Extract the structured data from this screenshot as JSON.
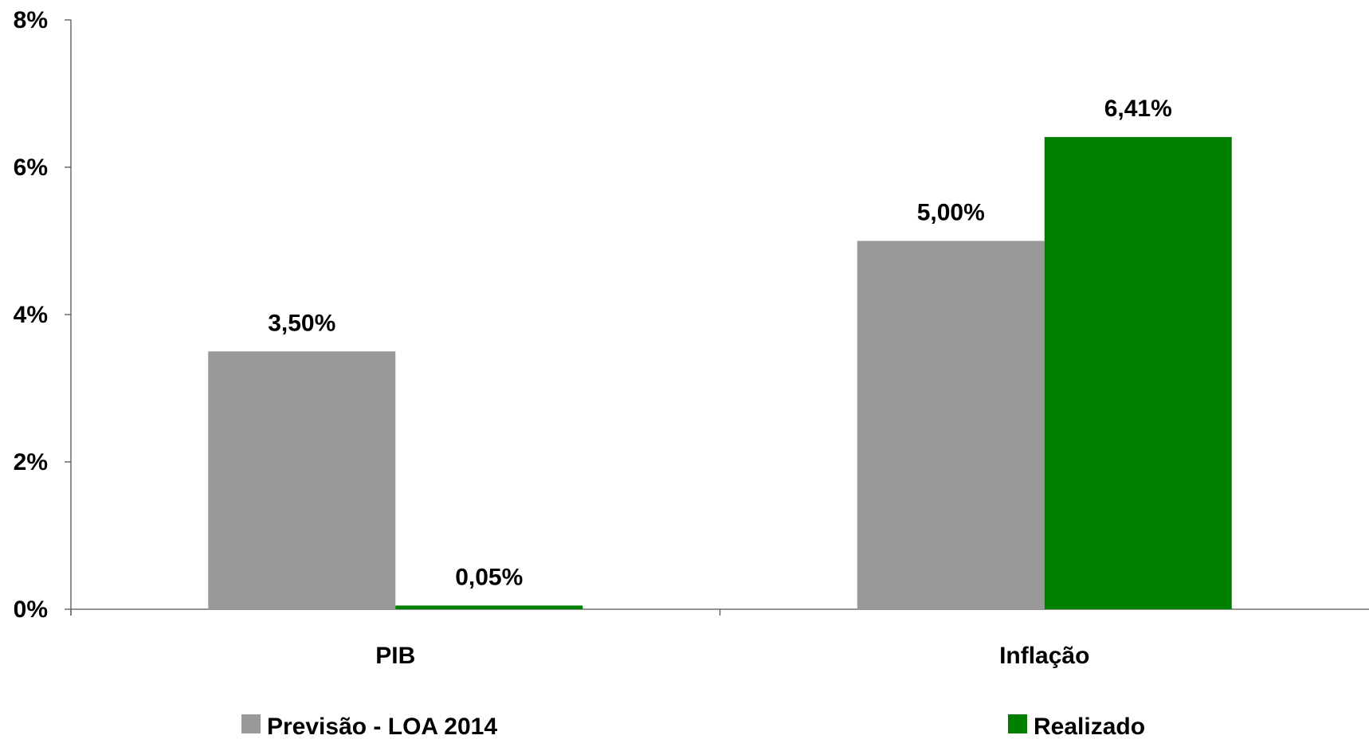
{
  "chart_data": {
    "type": "bar",
    "categories": [
      "PIB",
      "Inflação"
    ],
    "series": [
      {
        "name": "Previsão - LOA 2014",
        "values": [
          3.5,
          5.0
        ],
        "labels": [
          "3,50%",
          "5,00%"
        ],
        "color": "#999999"
      },
      {
        "name": "Realizado",
        "values": [
          0.05,
          6.41
        ],
        "labels": [
          "0,05%",
          "6,41%"
        ],
        "color": "#008000"
      }
    ],
    "ylim": [
      0,
      8
    ],
    "yticks": [
      0,
      2,
      4,
      6,
      8
    ],
    "ytick_labels": [
      "0%",
      "2%",
      "4%",
      "6%",
      "8%"
    ],
    "grid": false,
    "legend_position": "bottom"
  },
  "colors": {
    "axis": "#555555"
  }
}
